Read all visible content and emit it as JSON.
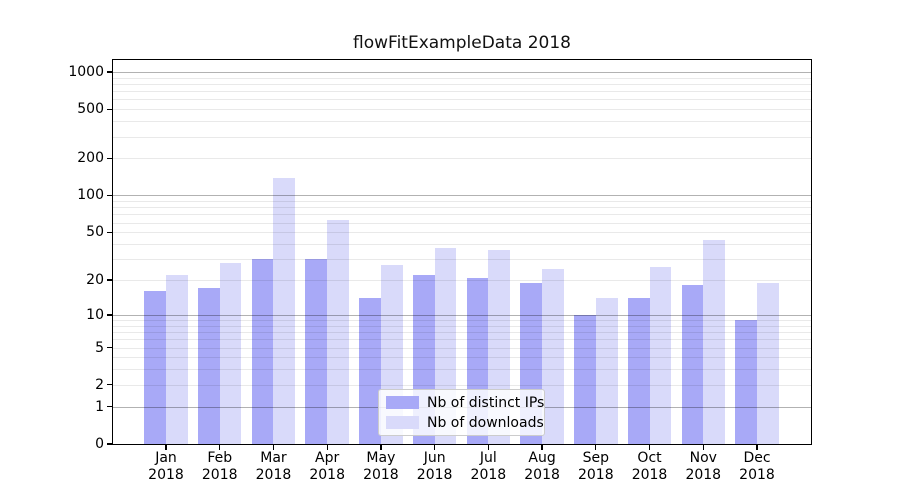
{
  "chart_data": {
    "type": "bar",
    "title": "flowFitExampleData 2018",
    "categories": [
      "Jan",
      "Feb",
      "Mar",
      "Apr",
      "May",
      "Jun",
      "Jul",
      "Aug",
      "Sep",
      "Oct",
      "Nov",
      "Dec"
    ],
    "year_label": "2018",
    "series": [
      {
        "name": "Nb of distinct IPs",
        "color": "#a8a9f7",
        "values": [
          16,
          17,
          30,
          30,
          14,
          22,
          21,
          19,
          10,
          14,
          18,
          9
        ]
      },
      {
        "name": "Nb of downloads",
        "color": "#d9dafa",
        "values": [
          22,
          28,
          140,
          63,
          27,
          37,
          36,
          25,
          14,
          26,
          43,
          19
        ]
      }
    ],
    "xlabel": "",
    "ylabel": "",
    "yscale": "log1p",
    "ylim": [
      0,
      1250
    ],
    "yticks": [
      0,
      1,
      2,
      5,
      10,
      20,
      50,
      100,
      200,
      500,
      1000
    ],
    "ytick_labels": [
      "0",
      "1",
      "2",
      "5",
      "10",
      "20",
      "50",
      "100",
      "200",
      "500",
      "1000"
    ],
    "major_gridlines": [
      1,
      10,
      100,
      1000
    ],
    "minor_gridlines": [
      2,
      3,
      4,
      5,
      6,
      7,
      8,
      9,
      20,
      30,
      40,
      50,
      60,
      70,
      80,
      90,
      200,
      300,
      400,
      500,
      600,
      700,
      800,
      900
    ],
    "grid": true,
    "legend_position": "lower center inside plot",
    "axis_color": "#000000",
    "background_color": "#ffffff"
  }
}
